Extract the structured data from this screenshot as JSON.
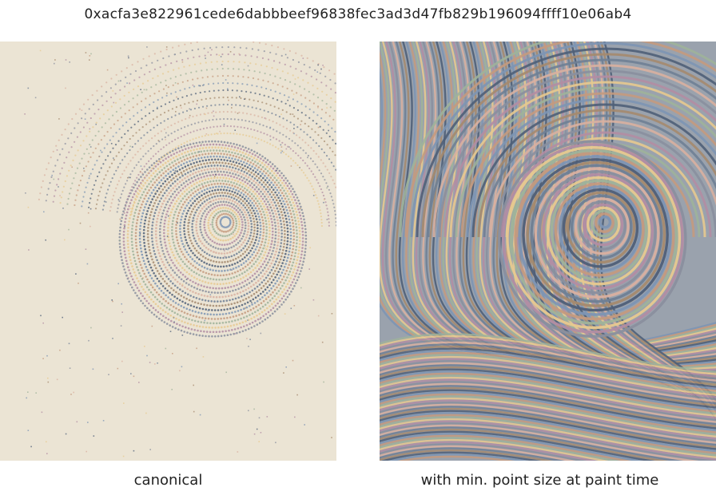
{
  "title": "0xacfa3e822961cede6dabbbeef96838fec3ad3d47fb829b196094ffff10e06ab4",
  "panels": [
    {
      "caption": "canonical"
    },
    {
      "caption": "with min. point size at paint time"
    }
  ],
  "colors": {
    "canvas_background": "#ebe4d4",
    "palette": [
      "#7d95b4",
      "#c49a7e",
      "#9fb39a",
      "#e7c98f",
      "#b28da3",
      "#8a8f9e",
      "#d9b0a0",
      "#6f7f95",
      "#a58a6e",
      "#4f5f78"
    ]
  }
}
